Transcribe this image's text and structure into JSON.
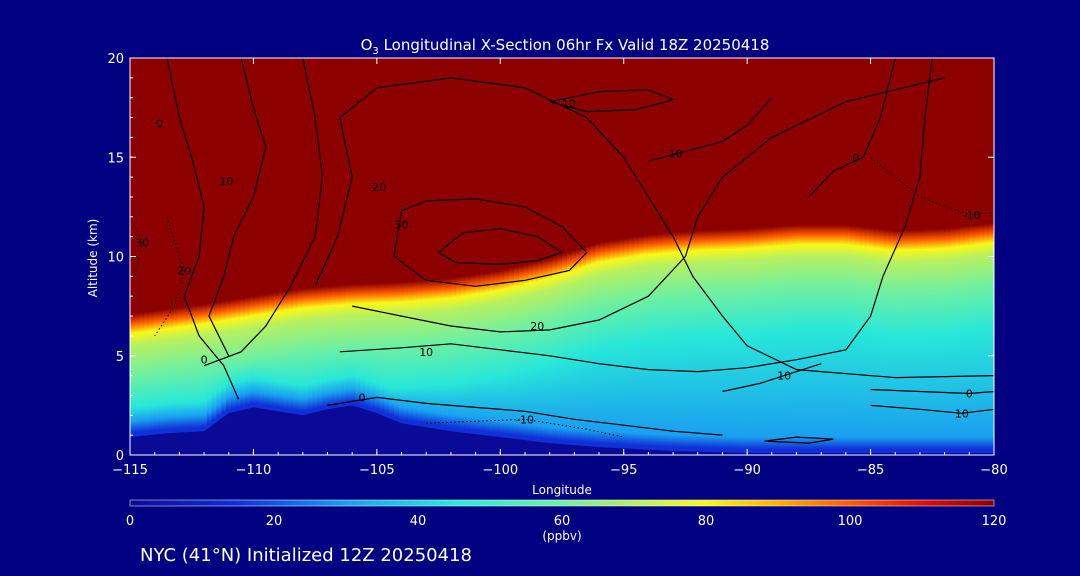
{
  "chart_data": {
    "type": "heatmap",
    "title_prefix": "O",
    "title_sub": "3",
    "title_rest": " Longitudinal X-Section 06hr  Fx Valid 18Z 20250418",
    "xlabel": "Longitude",
    "ylabel": "Altitude (km)",
    "xlim": [
      -115,
      -80
    ],
    "ylim": [
      0,
      20
    ],
    "x_ticks": [
      -115,
      -110,
      -105,
      -100,
      -95,
      -90,
      -85,
      -80
    ],
    "x_tick_labels": [
      "−115",
      "−110",
      "−105",
      "−100",
      "−95",
      "−90",
      "−85",
      "−80"
    ],
    "y_ticks": [
      0,
      5,
      10,
      15,
      20
    ],
    "y_tick_labels": [
      "0",
      "5",
      "10",
      "15",
      "20"
    ],
    "colorbar": {
      "min": 0,
      "max": 120,
      "ticks": [
        0,
        20,
        40,
        60,
        80,
        100,
        120
      ],
      "tick_labels": [
        "0",
        "20",
        "40",
        "60",
        "80",
        "100",
        "120"
      ],
      "unit": "(ppbv)",
      "stops": [
        {
          "v": 0,
          "c": "#0a0a96"
        },
        {
          "v": 15,
          "c": "#1030d8"
        },
        {
          "v": 30,
          "c": "#1aa0f0"
        },
        {
          "v": 45,
          "c": "#28e8d8"
        },
        {
          "v": 60,
          "c": "#70f0a0"
        },
        {
          "v": 70,
          "c": "#b8f060"
        },
        {
          "v": 80,
          "c": "#f8f818"
        },
        {
          "v": 90,
          "c": "#ffb000"
        },
        {
          "v": 100,
          "c": "#ff5a00"
        },
        {
          "v": 110,
          "c": "#e01000"
        },
        {
          "v": 120,
          "c": "#8c0000"
        }
      ]
    },
    "terrain": [
      [
        -115,
        0.9
      ],
      [
        -113.5,
        1.1
      ],
      [
        -112,
        1.2
      ],
      [
        -111,
        2.1
      ],
      [
        -110,
        2.4
      ],
      [
        -109,
        2.2
      ],
      [
        -108,
        2.0
      ],
      [
        -107,
        2.3
      ],
      [
        -106,
        2.5
      ],
      [
        -105,
        2.1
      ],
      [
        -104,
        1.6
      ],
      [
        -102,
        1.2
      ],
      [
        -100,
        0.9
      ],
      [
        -98,
        0.6
      ],
      [
        -96,
        0.4
      ],
      [
        -93,
        0.2
      ],
      [
        -90,
        0.1
      ],
      [
        -85,
        0.1
      ],
      [
        -80,
        0.1
      ]
    ],
    "tropopause_km": [
      [
        -115,
        7.0
      ],
      [
        -112,
        7.5
      ],
      [
        -110,
        7.9
      ],
      [
        -108,
        8.3
      ],
      [
        -106,
        8.5
      ],
      [
        -104,
        8.6
      ],
      [
        -102,
        8.8
      ],
      [
        -100,
        9.2
      ],
      [
        -98,
        9.8
      ],
      [
        -96,
        10.6
      ],
      [
        -94,
        11.0
      ],
      [
        -92,
        11.2
      ],
      [
        -90,
        11.3
      ],
      [
        -88,
        11.5
      ],
      [
        -86,
        11.5
      ],
      [
        -84,
        11.2
      ],
      [
        -82,
        11.3
      ],
      [
        -80,
        11.6
      ]
    ],
    "contours": [
      {
        "label": "0",
        "label_at": [
          -113.8,
          16.7
        ],
        "dashed": false,
        "points": [
          [
            -113.5,
            20
          ],
          [
            -113,
            17
          ],
          [
            -112.5,
            15
          ],
          [
            -112,
            12.5
          ],
          [
            -112.2,
            10
          ],
          [
            -112.8,
            8
          ],
          [
            -112.2,
            6
          ],
          [
            -111.2,
            4.5
          ],
          [
            -110.6,
            2.8
          ]
        ]
      },
      {
        "label": "0",
        "label_at": [
          -112,
          4.8
        ],
        "dashed": false,
        "points": [
          [
            -112,
            4.5
          ],
          [
            -110.5,
            5.2
          ],
          [
            -109.5,
            6.5
          ],
          [
            -108.5,
            8.5
          ],
          [
            -107.5,
            11
          ],
          [
            -107.2,
            14
          ],
          [
            -107.5,
            17
          ],
          [
            -108,
            20
          ]
        ]
      },
      {
        "label": "10",
        "label_at": [
          -111.1,
          13.8
        ],
        "dashed": false,
        "points": [
          [
            -110.5,
            20
          ],
          [
            -110,
            17.5
          ],
          [
            -109.5,
            15.5
          ],
          [
            -110,
            13
          ],
          [
            -110.8,
            11
          ],
          [
            -111.2,
            9
          ],
          [
            -111.8,
            7
          ],
          [
            -111,
            5
          ]
        ]
      },
      {
        "label": "20",
        "label_at": [
          -104.9,
          13.5
        ],
        "dashed": false,
        "points": [
          [
            -107.5,
            8.5
          ],
          [
            -106.6,
            11
          ],
          [
            -106,
            14
          ],
          [
            -106.5,
            17
          ],
          [
            -105,
            18.5
          ],
          [
            -102,
            19
          ],
          [
            -99,
            18.5
          ],
          [
            -96.5,
            17
          ],
          [
            -95,
            15
          ],
          [
            -94,
            13
          ],
          [
            -93,
            11
          ],
          [
            -92.2,
            9
          ],
          [
            -91,
            7
          ],
          [
            -90,
            5.5
          ],
          [
            -88,
            4.3
          ],
          [
            -84,
            3.9
          ],
          [
            -80,
            4.0
          ]
        ]
      },
      {
        "label": "20",
        "label_at": [
          -98.5,
          6.5
        ],
        "dashed": false,
        "points": [
          [
            -106,
            7.5
          ],
          [
            -104,
            7
          ],
          [
            -102,
            6.5
          ],
          [
            -100,
            6.2
          ],
          [
            -98,
            6.3
          ],
          [
            -96,
            6.8
          ],
          [
            -94,
            8
          ],
          [
            -92.5,
            10
          ],
          [
            -92,
            12
          ],
          [
            -91,
            14
          ],
          [
            -89,
            16
          ],
          [
            -86,
            17.8
          ],
          [
            -82,
            19
          ]
        ]
      },
      {
        "label": "10",
        "label_at": [
          -103,
          5.2
        ],
        "dashed": false,
        "points": [
          [
            -106.5,
            5.2
          ],
          [
            -104,
            5.4
          ],
          [
            -102,
            5.6
          ],
          [
            -100,
            5.3
          ],
          [
            -98,
            5
          ],
          [
            -96,
            4.6
          ],
          [
            -94,
            4.3
          ],
          [
            -92,
            4.2
          ],
          [
            -90,
            4.4
          ],
          [
            -88,
            4.8
          ],
          [
            -86,
            5.3
          ],
          [
            -85,
            7
          ],
          [
            -84.5,
            9
          ],
          [
            -83.6,
            11.5
          ],
          [
            -83,
            14
          ],
          [
            -82.8,
            17
          ],
          [
            -82.5,
            20
          ]
        ]
      },
      {
        "label": "0",
        "label_at": [
          -105.6,
          2.9
        ],
        "dashed": false,
        "points": [
          [
            -107,
            2.5
          ],
          [
            -105,
            2.9
          ],
          [
            -103,
            2.6
          ],
          [
            -101,
            2.4
          ],
          [
            -99,
            2.2
          ],
          [
            -97,
            1.8
          ],
          [
            -95,
            1.5
          ],
          [
            -93,
            1.2
          ],
          [
            -91,
            1.0
          ]
        ]
      },
      {
        "label": "30",
        "label_at": [
          -104,
          11.6
        ],
        "dashed": false,
        "points": [
          [
            -104,
            12.3
          ],
          [
            -103,
            12.8
          ],
          [
            -101,
            12.9
          ],
          [
            -99,
            12.5
          ],
          [
            -97.5,
            11.5
          ],
          [
            -96.5,
            10.2
          ],
          [
            -97.2,
            9.3
          ],
          [
            -99,
            8.8
          ],
          [
            -101,
            8.5
          ],
          [
            -103,
            8.8
          ],
          [
            -104.3,
            10
          ],
          [
            -104,
            12.3
          ]
        ]
      },
      {
        "label": "",
        "label_at": null,
        "dashed": false,
        "points": [
          [
            -102.5,
            10.2
          ],
          [
            -101.5,
            11.2
          ],
          [
            -100,
            11.4
          ],
          [
            -98.5,
            11
          ],
          [
            -97.5,
            10.2
          ],
          [
            -98.5,
            9.8
          ],
          [
            -100,
            9.6
          ],
          [
            -101.8,
            9.7
          ],
          [
            -102.5,
            10.2
          ]
        ]
      },
      {
        "label": "-10",
        "label_at": [
          -97.3,
          17.7
        ],
        "dashed": false,
        "points": [
          [
            -98,
            17.8
          ],
          [
            -96,
            18.3
          ],
          [
            -94,
            18.4
          ],
          [
            -93,
            17.9
          ],
          [
            -94.5,
            17.4
          ],
          [
            -96.5,
            17.3
          ],
          [
            -98,
            17.8
          ]
        ]
      },
      {
        "label": "10",
        "label_at": [
          -92.9,
          15.2
        ],
        "dashed": false,
        "points": [
          [
            -94,
            14.8
          ],
          [
            -92.8,
            15.2
          ],
          [
            -91,
            15.8
          ],
          [
            -90,
            16.6
          ],
          [
            -89,
            18
          ]
        ]
      },
      {
        "label": "-10",
        "label_at": [
          -99,
          1.8
        ],
        "dashed": true,
        "points": [
          [
            -103,
            1.6
          ],
          [
            -101,
            1.7
          ],
          [
            -99,
            1.8
          ],
          [
            -96.5,
            1.3
          ],
          [
            -95,
            0.9
          ]
        ]
      },
      {
        "label": "0",
        "label_at": [
          -85.6,
          15.0
        ],
        "dashed": false,
        "points": [
          [
            -87.5,
            13
          ],
          [
            -86.5,
            14.3
          ],
          [
            -85.3,
            15
          ],
          [
            -84.6,
            17
          ],
          [
            -84,
            20
          ]
        ]
      },
      {
        "label": "-10",
        "label_at": [
          -80.9,
          12.1
        ],
        "dashed": true,
        "points": [
          [
            -85,
            15
          ],
          [
            -83,
            13
          ],
          [
            -81,
            12.1
          ],
          [
            -80,
            12.2
          ]
        ]
      },
      {
        "label": "0",
        "label_at": [
          -81,
          3.1
        ],
        "dashed": false,
        "points": [
          [
            -85,
            3.3
          ],
          [
            -83,
            3.2
          ],
          [
            -81,
            3.1
          ],
          [
            -80,
            3.2
          ]
        ]
      },
      {
        "label": "10",
        "label_at": [
          -81.3,
          2.1
        ],
        "dashed": false,
        "points": [
          [
            -85,
            2.5
          ],
          [
            -83,
            2.3
          ],
          [
            -81.3,
            2.1
          ],
          [
            -80,
            2.3
          ]
        ]
      },
      {
        "label": "",
        "label_at": null,
        "dashed": false,
        "points": [
          [
            -89.3,
            0.7
          ],
          [
            -88,
            0.9
          ],
          [
            -86.5,
            0.8
          ],
          [
            -87.5,
            0.6
          ],
          [
            -89.3,
            0.7
          ]
        ]
      },
      {
        "label": "10",
        "label_at": [
          -88.5,
          4.0
        ],
        "dashed": false,
        "points": [
          [
            -91,
            3.2
          ],
          [
            -89.5,
            3.6
          ],
          [
            -88.5,
            4.0
          ],
          [
            -87,
            4.6
          ]
        ]
      },
      {
        "label": "20",
        "label_at": [
          -112.8,
          9.3
        ],
        "dashed": true,
        "points": [
          [
            -113.5,
            12
          ],
          [
            -113,
            10
          ],
          [
            -112.8,
            9.3
          ],
          [
            -113.2,
            7.5
          ],
          [
            -114,
            6
          ]
        ]
      },
      {
        "label": "30",
        "label_at": [
          -114.5,
          10.7
        ],
        "dashed": true,
        "points": [
          [
            -115,
            12
          ],
          [
            -114.5,
            10.7
          ],
          [
            -114.8,
            9
          ]
        ]
      }
    ]
  },
  "footer": {
    "caption": "NYC (41°N) Initialized 12Z 20250418"
  }
}
